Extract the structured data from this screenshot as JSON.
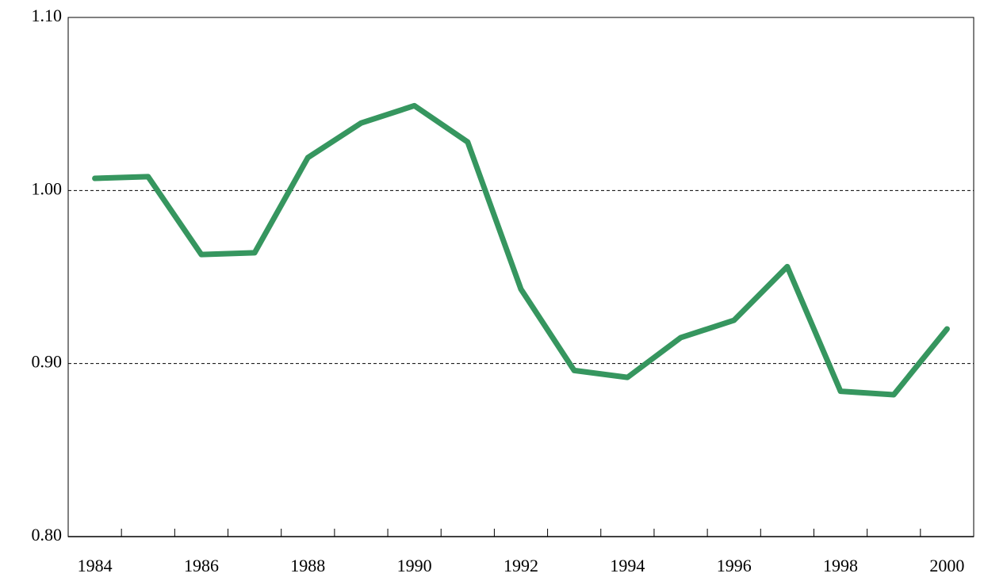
{
  "chart_data": {
    "type": "line",
    "categories": [
      "1984",
      null,
      "1986",
      null,
      "1988",
      null,
      "1990",
      null,
      "1992",
      null,
      "1994",
      null,
      "1996",
      null,
      "1998",
      null,
      "2000"
    ],
    "series": [
      {
        "color": "#36965f",
        "values": [
          1.007,
          1.008,
          0.963,
          0.964,
          1.019,
          1.039,
          1.049,
          1.028,
          0.943,
          0.896,
          0.892,
          0.915,
          0.925,
          0.956,
          0.884,
          0.882,
          0.92
        ]
      }
    ],
    "ylim": [
      0.8,
      1.1
    ],
    "yticks": [
      {
        "value": 0.8,
        "label": "0.80"
      },
      {
        "value": 0.9,
        "label": "0.90"
      },
      {
        "value": 1.0,
        "label": "1.00"
      },
      {
        "value": 1.1,
        "label": "1.10"
      }
    ],
    "grid": true
  }
}
